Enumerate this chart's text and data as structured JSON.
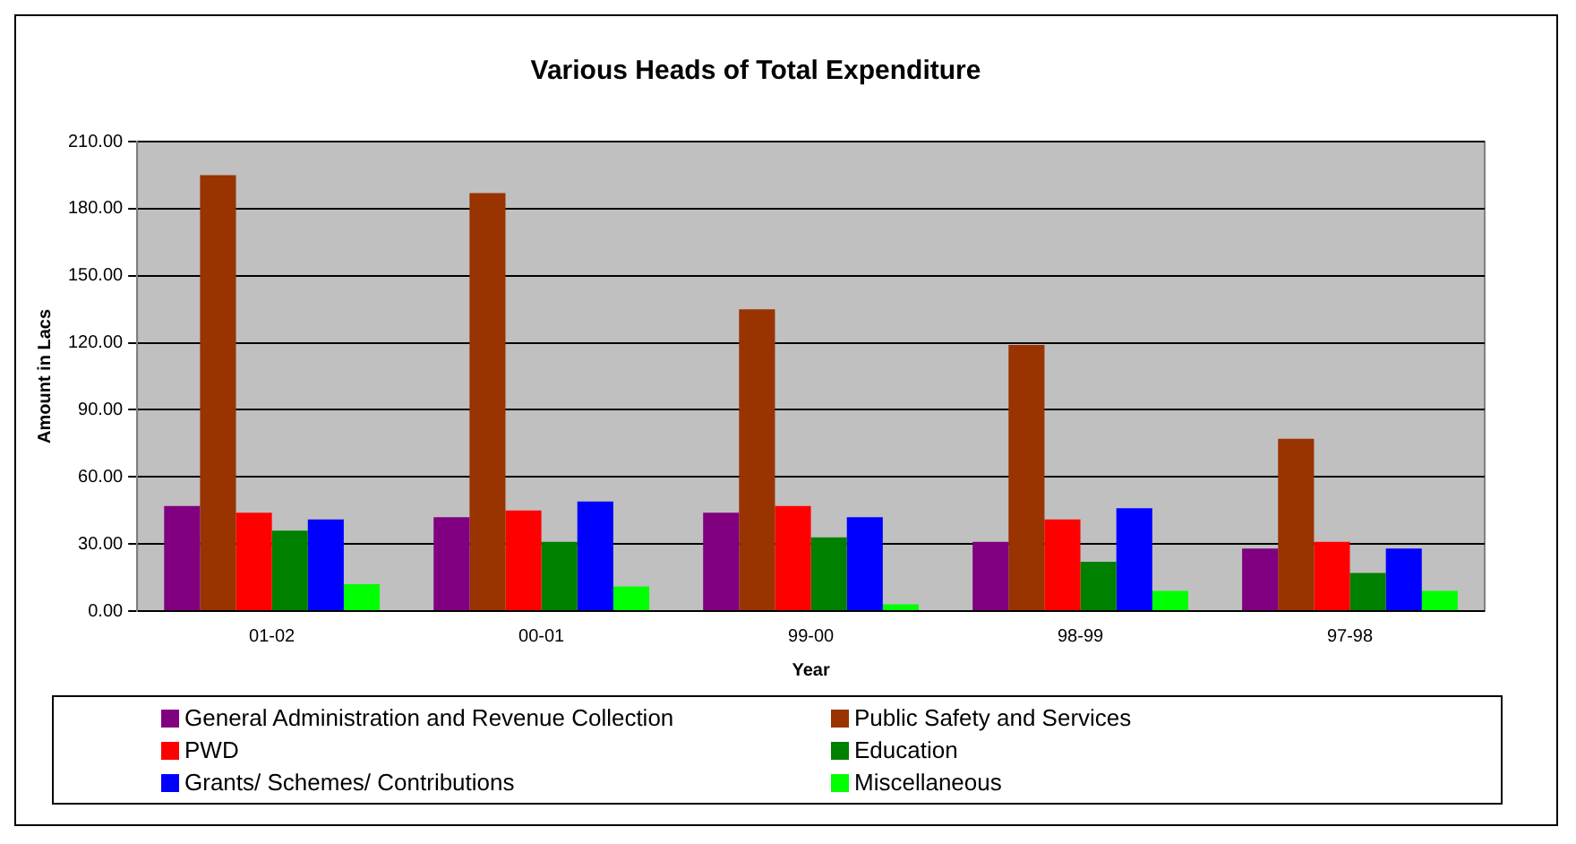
{
  "chart_data": {
    "type": "bar",
    "title": "Various Heads of Total Expenditure",
    "xlabel": "Year",
    "ylabel": "Amount in Lacs",
    "categories": [
      "01-02",
      "00-01",
      "99-00",
      "98-99",
      "97-98"
    ],
    "series": [
      {
        "name": "General Administration and Revenue Collection",
        "color": "#800080",
        "values": [
          47,
          42,
          44,
          31,
          28
        ]
      },
      {
        "name": "Public Safety and Services",
        "color": "#993300",
        "values": [
          195,
          187,
          135,
          119,
          77
        ]
      },
      {
        "name": "PWD",
        "color": "#ff0000",
        "values": [
          44,
          45,
          47,
          41,
          31
        ]
      },
      {
        "name": "Education",
        "color": "#008000",
        "values": [
          36,
          31,
          33,
          22,
          17
        ]
      },
      {
        "name": "Grants/ Schemes/ Contributions",
        "color": "#0000ff",
        "values": [
          41,
          49,
          42,
          46,
          28
        ]
      },
      {
        "name": "Miscellaneous",
        "color": "#00ff00",
        "values": [
          12,
          11,
          3,
          9,
          9
        ]
      }
    ],
    "ylim": [
      0,
      210
    ],
    "yticks": [
      {
        "value": 0,
        "label": "0.00"
      },
      {
        "value": 30,
        "label": "30.00"
      },
      {
        "value": 60,
        "label": "60.00"
      },
      {
        "value": 90,
        "label": "90.00"
      },
      {
        "value": 120,
        "label": "120.00"
      },
      {
        "value": 150,
        "label": "150.00"
      },
      {
        "value": 180,
        "label": "180.00"
      },
      {
        "value": 210,
        "label": "210.00"
      }
    ],
    "grid": "y",
    "legend": "bottom"
  }
}
